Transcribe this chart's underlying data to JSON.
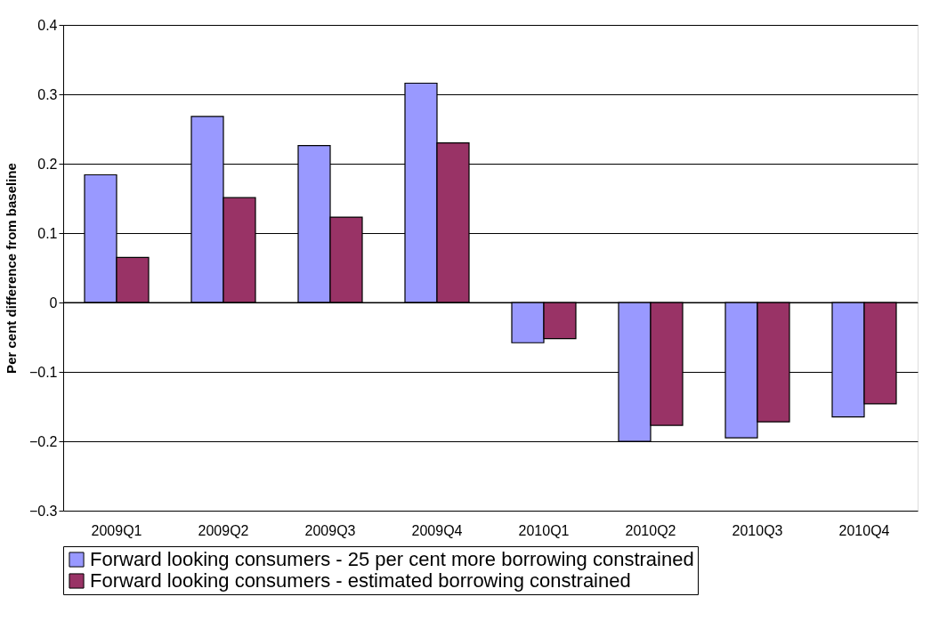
{
  "chart_data": {
    "type": "bar",
    "ylabel": "Per cent difference from baseline",
    "categories": [
      "2009Q1",
      "2009Q2",
      "2009Q3",
      "2009Q4",
      "2010Q1",
      "2010Q2",
      "2010Q3",
      "2010Q4"
    ],
    "series": [
      {
        "name": "Forward looking consumers - 25 per cent more borrowing constrained",
        "color": "#9999ff",
        "values": [
          0.184,
          0.268,
          0.226,
          0.316,
          -0.058,
          -0.2,
          -0.195,
          -0.165
        ]
      },
      {
        "name": "Forward looking consumers - estimated borrowing constrained",
        "color": "#993366",
        "values": [
          0.065,
          0.151,
          0.123,
          0.23,
          -0.052,
          -0.177,
          -0.172,
          -0.146
        ]
      }
    ],
    "ylim": [
      -0.3,
      0.4
    ],
    "yticks": [
      -0.3,
      -0.2,
      -0.1,
      0,
      0.1,
      0.2,
      0.3,
      0.4
    ],
    "grid": "y",
    "legend": "bottom"
  }
}
